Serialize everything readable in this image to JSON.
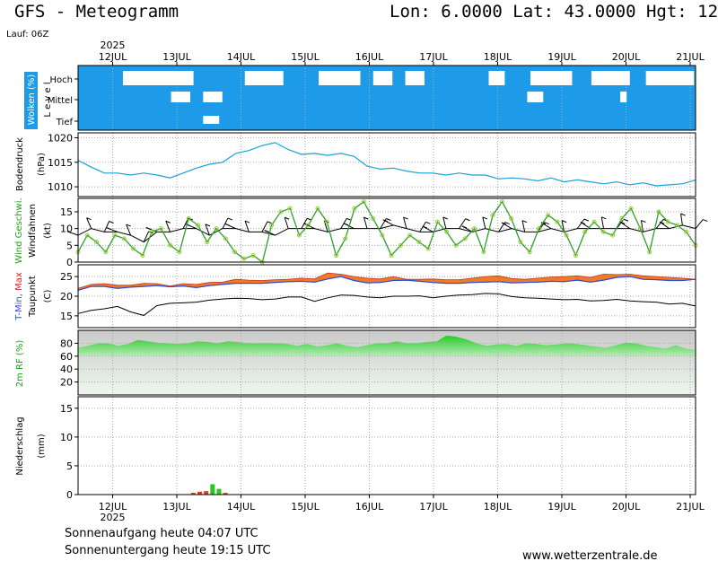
{
  "header": {
    "title": "GFS - Meteogramm",
    "location": "Lon: 6.0000 Lat: 43.0000 Hgt: 12",
    "run": "Lauf: 06Z"
  },
  "footer": {
    "sunrise": "Sonnenaufgang heute 04:07 UTC",
    "sunset": "Sonnenuntergang heute 19:15 UTC",
    "website": "www.wetterzentrale.de"
  },
  "colors": {
    "cloud_bg": "#1e9be8",
    "pressure_line": "#1aa0d8",
    "wind_line": "#2ca02c",
    "wind_marker": "#9acd32",
    "tmax_fill": "#f07a2a",
    "tmin_line": "#2a4fd8",
    "dewpoint_line": "#000000",
    "humidity_fill": "#33cc33",
    "precip_bar": "#22cc22",
    "precip_bar_conv": "#e63b1a",
    "grid": "#aaaaaa"
  },
  "chart_data": {
    "type": "line",
    "x_axis": {
      "year_label": "2025",
      "days": [
        "12JUL",
        "13JUL",
        "14JUL",
        "15JUL",
        "16JUL",
        "17JUL",
        "18JUL",
        "19JUL",
        "20JUL",
        "21JUL"
      ]
    },
    "panels": [
      {
        "id": "clouds",
        "ylabel": "Wolken (%)",
        "level_label": "L e v e l",
        "levels": [
          "Hoch",
          "Mittel",
          "Tief"
        ],
        "high_clear_segments": [
          [
            0.3,
            1.4
          ],
          [
            2.2,
            2.8
          ],
          [
            3.35,
            4.0
          ],
          [
            4.2,
            4.5
          ],
          [
            4.7,
            5.0
          ],
          [
            6.0,
            6.25
          ],
          [
            6.65,
            7.3
          ],
          [
            7.6,
            8.2
          ],
          [
            8.45,
            9.2
          ],
          [
            9.35,
            9.75
          ]
        ],
        "mid_clear_segments": [
          [
            1.05,
            1.35
          ],
          [
            1.55,
            1.85
          ],
          [
            6.6,
            6.85
          ],
          [
            8.05,
            8.15
          ]
        ],
        "low_clear_segments": [
          [
            1.55,
            1.8
          ]
        ]
      },
      {
        "id": "pressure",
        "ylabel": "Bodendruck",
        "unit": "(hPa)",
        "ylim": [
          1008,
          1021
        ],
        "yticks": [
          1010,
          1015,
          1020
        ],
        "series": [
          {
            "values": [
              1015.4,
              1014.0,
              1012.8,
              1012.8,
              1012.4,
              1012.8,
              1012.4,
              1011.8,
              1012.8,
              1013.8,
              1014.6,
              1015.0,
              1016.8,
              1017.4,
              1018.4,
              1019.0,
              1017.6,
              1016.6,
              1016.8,
              1016.4,
              1016.8,
              1016.2,
              1014.2,
              1013.6,
              1013.8,
              1013.2,
              1012.8,
              1012.8,
              1012.4,
              1012.8,
              1012.4,
              1012.4,
              1011.6,
              1011.8,
              1011.6,
              1011.2,
              1011.8,
              1011.0,
              1011.4,
              1011.0,
              1010.6,
              1011.0,
              1010.4,
              1010.8,
              1010.2,
              1010.4,
              1010.6,
              1011.4
            ]
          }
        ]
      },
      {
        "id": "wind",
        "ylabel": "Wind Geschwi.",
        "ylabel2": "Windfahnen",
        "unit": "(kt)",
        "ylim": [
          0,
          19
        ],
        "yticks": [
          0,
          5,
          10,
          15
        ],
        "series": [
          {
            "values": [
              3,
              8,
              6,
              3,
              8,
              7,
              4,
              2,
              9,
              10,
              5,
              3,
              13,
              11,
              6,
              10,
              7,
              3,
              1,
              2,
              0,
              11,
              15,
              16,
              8,
              11,
              16,
              12,
              2,
              7,
              16,
              18,
              13,
              8,
              2,
              5,
              8,
              6,
              4,
              12,
              9,
              5,
              7,
              10,
              3,
              14,
              18,
              13,
              6,
              3,
              10,
              14,
              12,
              8,
              2,
              9,
              12,
              9,
              8,
              13,
              16,
              10,
              3,
              15,
              12,
              11,
              9,
              5
            ]
          }
        ],
        "barb_values": [
          8,
          10,
          9,
          9,
          8,
          6,
          9,
          9,
          10,
          10,
          8,
          10,
          10,
          9,
          9,
          8,
          10,
          10,
          10,
          9,
          10,
          10,
          10,
          10,
          11,
          10,
          9,
          9,
          10,
          10,
          9,
          10,
          9,
          10,
          9,
          9,
          10,
          9,
          10,
          10,
          10,
          10,
          10,
          9,
          10,
          10,
          11,
          10
        ]
      },
      {
        "id": "temperature",
        "ylabel": "T-Min, Max",
        "ylabel2": "Taupunkt",
        "unit": "(C)",
        "ylim": [
          12,
          28
        ],
        "yticks": [
          15,
          20,
          25
        ],
        "series": [
          {
            "name": "T-Min",
            "values": [
              21.5,
              22.5,
              22.5,
              22.0,
              22.3,
              22.5,
              22.7,
              22.4,
              22.6,
              22.2,
              22.7,
              23.0,
              23.3,
              23.3,
              23.3,
              23.5,
              23.7,
              23.8,
              23.6,
              24.4,
              25.0,
              24.0,
              23.4,
              23.5,
              24.0,
              24.1,
              23.8,
              23.5,
              23.3,
              23.3,
              23.5,
              23.6,
              23.7,
              23.4,
              23.5,
              23.6,
              23.8,
              23.7,
              24.1,
              23.6,
              24.1,
              24.8,
              25.0,
              24.3,
              24.2,
              24.0,
              24.0,
              24.3
            ]
          },
          {
            "name": "T-Max",
            "values": [
              22.0,
              23.0,
              23.2,
              22.8,
              22.8,
              23.3,
              23.2,
              22.6,
              23.2,
              23.0,
              23.5,
              23.6,
              24.3,
              24.1,
              24.0,
              24.2,
              24.3,
              24.6,
              24.4,
              25.9,
              25.6,
              25.0,
              24.6,
              24.4,
              25.0,
              24.3,
              24.3,
              24.4,
              24.2,
              24.2,
              24.6,
              25.0,
              25.2,
              24.5,
              24.3,
              24.6,
              24.9,
              25.0,
              25.2,
              24.8,
              25.6,
              25.5,
              25.6,
              25.2,
              25.0,
              24.8,
              24.6,
              24.3
            ]
          },
          {
            "name": "Taupunkt",
            "values": [
              15.6,
              16.4,
              16.8,
              17.4,
              16.0,
              15.1,
              17.6,
              18.2,
              18.3,
              18.5,
              19.0,
              19.3,
              19.5,
              19.4,
              19.1,
              19.3,
              19.8,
              19.8,
              18.7,
              19.6,
              20.3,
              20.2,
              19.8,
              19.6,
              20.0,
              20.0,
              20.1,
              19.6,
              20.0,
              20.3,
              20.4,
              20.7,
              20.6,
              19.9,
              19.6,
              19.5,
              19.3,
              19.1,
              19.2,
              18.8,
              18.9,
              19.2,
              18.8,
              18.6,
              18.5,
              18.0,
              18.2,
              17.5
            ]
          }
        ]
      },
      {
        "id": "humidity",
        "ylabel": "2m RF (%)",
        "ylim": [
          0,
          100
        ],
        "yticks": [
          20,
          40,
          60,
          80
        ],
        "series": [
          {
            "values": [
              73,
              76,
              80,
              80,
              76,
              79,
              85,
              83,
              81,
              80,
              79,
              80,
              83,
              82,
              80,
              83,
              82,
              80,
              80,
              80,
              80,
              79,
              76,
              79,
              75,
              77,
              80,
              76,
              74,
              77,
              80,
              80,
              83,
              80,
              80,
              82,
              83,
              92,
              90,
              86,
              80,
              76,
              78,
              79,
              76,
              80,
              79,
              77,
              78,
              80,
              79,
              77,
              75,
              73,
              77,
              81,
              80,
              76,
              74,
              72,
              77,
              72,
              70
            ]
          }
        ]
      },
      {
        "id": "precip",
        "ylabel": "Niederschlag",
        "unit": "(mm)",
        "ylim": [
          0,
          17
        ],
        "yticks": [
          0,
          5,
          10,
          15
        ],
        "series": [
          {
            "x": [
              1.25,
              1.35,
              1.45,
              1.55,
              1.65,
              1.75
            ],
            "values": [
              0.3,
              0.5,
              0.6,
              1.8,
              1.0,
              0.3
            ],
            "conv": [
              true,
              true,
              true,
              false,
              false,
              true
            ]
          }
        ]
      }
    ]
  }
}
